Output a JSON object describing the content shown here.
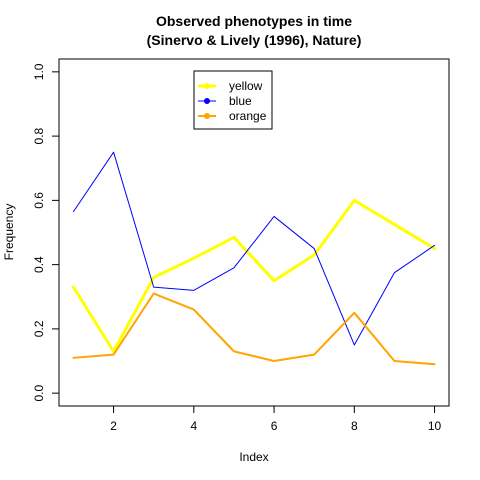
{
  "chart_data": {
    "type": "line",
    "title": "Observed phenotypes in time",
    "subtitle": "(Sinervo & Lively (1996), Nature)",
    "xlabel": "Index",
    "ylabel": "Frequency",
    "xlim": [
      0.64,
      10.36
    ],
    "ylim": [
      -0.04,
      1.04
    ],
    "x": [
      1,
      2,
      3,
      4,
      5,
      6,
      7,
      8,
      9,
      10
    ],
    "xticks": [
      "2",
      "4",
      "6",
      "8",
      "10"
    ],
    "yticks": [
      "0.0",
      "0.2",
      "0.4",
      "0.6",
      "0.8",
      "1.0"
    ],
    "legend_position": "top-center",
    "series": [
      {
        "name": "yellow",
        "color": "#ffff00",
        "line_weight": "thick",
        "values": [
          0.33,
          0.13,
          0.36,
          0.42,
          0.485,
          0.35,
          0.43,
          0.6,
          0.525,
          0.45
        ]
      },
      {
        "name": "blue",
        "color": "#0000ff",
        "line_weight": "thin",
        "values": [
          0.565,
          0.75,
          0.33,
          0.32,
          0.39,
          0.55,
          0.45,
          0.15,
          0.375,
          0.46
        ]
      },
      {
        "name": "orange",
        "color": "#ffa500",
        "line_weight": "medium",
        "values": [
          0.11,
          0.12,
          0.31,
          0.26,
          0.13,
          0.1,
          0.12,
          0.25,
          0.1,
          0.09
        ]
      }
    ]
  }
}
